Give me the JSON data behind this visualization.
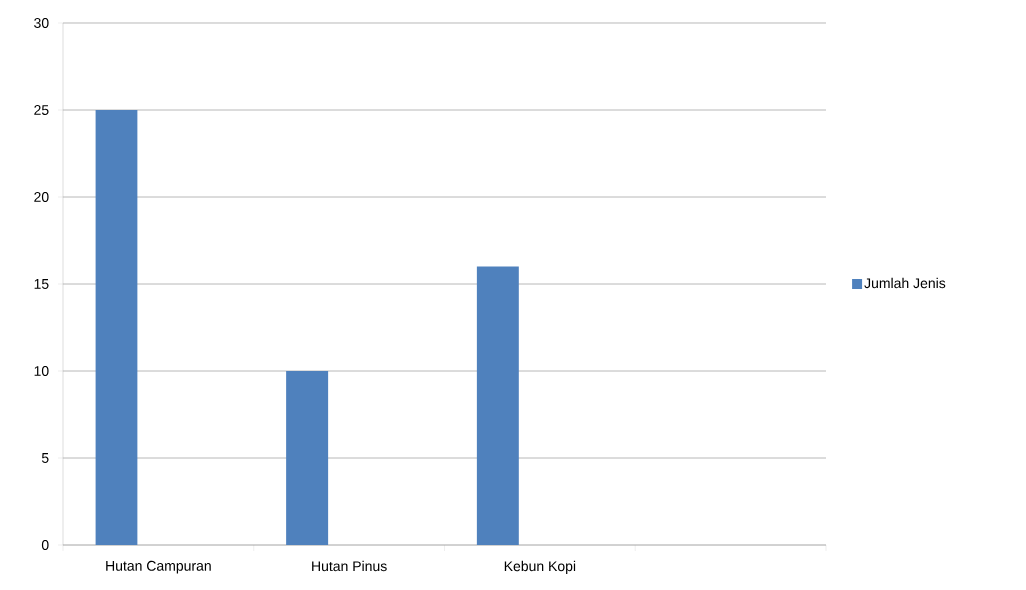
{
  "chart_data": {
    "type": "bar",
    "categories": [
      "Hutan Campuran",
      "Hutan Pinus",
      "Kebun Kopi",
      null
    ],
    "series": [
      {
        "name": "Jumlah Jenis",
        "color": "#4f81bd",
        "values": [
          25,
          10,
          16,
          null
        ]
      }
    ],
    "ylim": [
      0,
      30
    ],
    "yticks": [
      0,
      5,
      10,
      15,
      20,
      25,
      30
    ],
    "grid": "y",
    "legend": "right"
  }
}
